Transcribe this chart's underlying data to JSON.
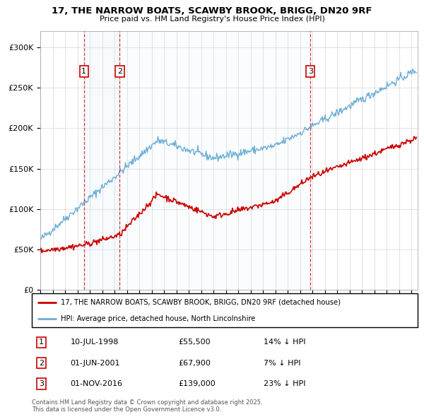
{
  "title_line1": "17, THE NARROW BOATS, SCAWBY BROOK, BRIGG, DN20 9RF",
  "title_line2": "Price paid vs. HM Land Registry's House Price Index (HPI)",
  "transactions": [
    {
      "num": 1,
      "date_str": "10-JUL-1998",
      "date_x": 1998.53,
      "price": 55500,
      "label": "14% ↓ HPI"
    },
    {
      "num": 2,
      "date_str": "01-JUN-2001",
      "date_x": 2001.42,
      "price": 67900,
      "label": "7% ↓ HPI"
    },
    {
      "num": 3,
      "date_str": "01-NOV-2016",
      "date_x": 2016.83,
      "price": 139000,
      "label": "23% ↓ HPI"
    }
  ],
  "hpi_color": "#6baed6",
  "price_color": "#cc0000",
  "legend_price_label": "17, THE NARROW BOATS, SCAWBY BROOK, BRIGG, DN20 9RF (detached house)",
  "legend_hpi_label": "HPI: Average price, detached house, North Lincolnshire",
  "footer_line1": "Contains HM Land Registry data © Crown copyright and database right 2025.",
  "footer_line2": "This data is licensed under the Open Government Licence v3.0.",
  "ylim": [
    0,
    320000
  ],
  "xlim_start": 1995.0,
  "xlim_end": 2025.5,
  "yticks": [
    0,
    50000,
    100000,
    150000,
    200000,
    250000,
    300000
  ],
  "ytick_labels": [
    "£0",
    "£50K",
    "£100K",
    "£150K",
    "£200K",
    "£250K",
    "£300K"
  ]
}
